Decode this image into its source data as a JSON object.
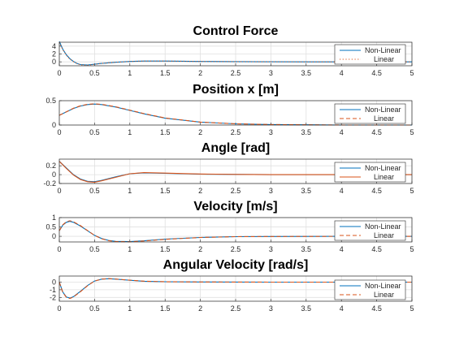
{
  "colors": {
    "nonlinear": "#0072BD",
    "linear": "#D95319",
    "grid": "#e0e0e0",
    "axis": "#262626"
  },
  "chart_data": [
    {
      "type": "line",
      "title": "Control Force",
      "xlim": [
        0,
        5
      ],
      "ylim": [
        -1,
        5
      ],
      "yticks": [
        "0",
        "2",
        "4"
      ],
      "yticks_values": [
        0,
        2,
        4
      ],
      "xticks": [
        "0",
        "0.5",
        "1",
        "1.5",
        "2",
        "2.5",
        "3",
        "3.5",
        "4",
        "4.5",
        "5"
      ],
      "grid": true,
      "legend": "right",
      "legend_style": [
        "solid",
        "dots"
      ],
      "series": [
        {
          "name": "Non-Linear",
          "x": [
            0,
            0.05,
            0.1,
            0.15,
            0.2,
            0.25,
            0.3,
            0.4,
            0.5,
            0.6,
            0.8,
            1.0,
            1.2,
            1.5,
            2.0,
            2.5,
            3.0,
            4.0,
            5.0
          ],
          "y": [
            5.2,
            3.2,
            1.8,
            0.8,
            0.1,
            -0.4,
            -0.7,
            -0.8,
            -0.6,
            -0.4,
            -0.1,
            0.1,
            0.2,
            0.2,
            0.1,
            0.05,
            0.02,
            0,
            0
          ]
        },
        {
          "name": "Linear",
          "x": [
            0,
            0.05,
            0.1,
            0.15,
            0.2,
            0.25,
            0.3,
            0.4,
            0.5,
            0.6,
            0.8,
            1.0,
            1.2,
            1.5,
            2.0,
            2.5,
            3.0,
            4.0,
            5.0
          ],
          "y": [
            5.0,
            3.1,
            1.7,
            0.7,
            0.05,
            -0.45,
            -0.75,
            -0.85,
            -0.65,
            -0.4,
            -0.1,
            0.1,
            0.2,
            0.2,
            0.1,
            0.05,
            0.02,
            0,
            0
          ]
        }
      ]
    },
    {
      "type": "line",
      "title": "Position x [m]",
      "xlim": [
        0,
        5
      ],
      "ylim": [
        0,
        0.5
      ],
      "yticks": [
        "0",
        "0.5"
      ],
      "yticks_values": [
        0,
        0.5
      ],
      "xticks": [
        "0",
        "0.5",
        "1",
        "1.5",
        "2",
        "2.5",
        "3",
        "3.5",
        "4",
        "4.5",
        "5"
      ],
      "grid": true,
      "legend": "right",
      "legend_style": [
        "solid",
        "dash"
      ],
      "series": [
        {
          "name": "Non-Linear",
          "x": [
            0,
            0.1,
            0.2,
            0.3,
            0.4,
            0.5,
            0.6,
            0.8,
            1.0,
            1.2,
            1.5,
            2.0,
            2.5,
            3.0,
            3.5,
            4.0,
            5.0
          ],
          "y": [
            0.2,
            0.27,
            0.34,
            0.39,
            0.42,
            0.43,
            0.42,
            0.37,
            0.3,
            0.23,
            0.14,
            0.06,
            0.025,
            0.01,
            0.005,
            0,
            0
          ]
        },
        {
          "name": "Linear",
          "x": [
            0,
            0.1,
            0.2,
            0.3,
            0.4,
            0.5,
            0.6,
            0.8,
            1.0,
            1.2,
            1.5,
            2.0,
            2.5,
            3.0,
            3.5,
            4.0,
            5.0
          ],
          "y": [
            0.2,
            0.27,
            0.345,
            0.395,
            0.425,
            0.435,
            0.425,
            0.375,
            0.305,
            0.235,
            0.145,
            0.06,
            0.025,
            0.01,
            0.005,
            0,
            0
          ]
        }
      ]
    },
    {
      "type": "line",
      "title": "Angle [rad]",
      "xlim": [
        0,
        5
      ],
      "ylim": [
        -0.2,
        0.35
      ],
      "yticks": [
        "0.2",
        "0",
        "-0.2"
      ],
      "yticks_values": [
        0.2,
        0,
        -0.2
      ],
      "xticks": [
        "0",
        "0.5",
        "1",
        "1.5",
        "2",
        "2.5",
        "3",
        "3.5",
        "4",
        "4.5",
        "5"
      ],
      "grid": true,
      "legend": "right",
      "legend_style": [
        "solid",
        "solid"
      ],
      "series": [
        {
          "name": "Non-Linear",
          "x": [
            0,
            0.1,
            0.2,
            0.3,
            0.4,
            0.5,
            0.6,
            0.8,
            1.0,
            1.2,
            1.5,
            2.0,
            2.5,
            3.0,
            4.0,
            5.0
          ],
          "y": [
            0.3,
            0.15,
            0.0,
            -0.1,
            -0.15,
            -0.16,
            -0.13,
            -0.05,
            0.02,
            0.04,
            0.03,
            0.01,
            0.005,
            0,
            0,
            0
          ]
        },
        {
          "name": "Linear",
          "x": [
            0,
            0.1,
            0.2,
            0.3,
            0.4,
            0.5,
            0.6,
            0.8,
            1.0,
            1.2,
            1.5,
            2.0,
            2.5,
            3.0,
            4.0,
            5.0
          ],
          "y": [
            0.3,
            0.14,
            -0.01,
            -0.11,
            -0.16,
            -0.17,
            -0.14,
            -0.06,
            0.02,
            0.045,
            0.035,
            0.015,
            0.005,
            0,
            0,
            0
          ]
        }
      ]
    },
    {
      "type": "line",
      "title": "Velocity [m/s]",
      "xlim": [
        0,
        5
      ],
      "ylim": [
        -0.3,
        1
      ],
      "yticks": [
        "1",
        "0.5",
        "0"
      ],
      "yticks_values": [
        1,
        0.5,
        0
      ],
      "xticks": [
        "0",
        "0.5",
        "1",
        "1.5",
        "2",
        "2.5",
        "3",
        "3.5",
        "4",
        "4.5",
        "5"
      ],
      "grid": true,
      "legend": "right",
      "legend_style": [
        "solid",
        "dash"
      ],
      "series": [
        {
          "name": "Non-Linear",
          "x": [
            0,
            0.05,
            0.1,
            0.15,
            0.2,
            0.3,
            0.4,
            0.5,
            0.6,
            0.7,
            0.8,
            1.0,
            1.2,
            1.5,
            2.0,
            2.5,
            3.0,
            4.0,
            5.0
          ],
          "y": [
            0.3,
            0.6,
            0.75,
            0.8,
            0.75,
            0.55,
            0.3,
            0.05,
            -0.12,
            -0.22,
            -0.27,
            -0.28,
            -0.24,
            -0.15,
            -0.06,
            -0.02,
            -0.01,
            0,
            0
          ]
        },
        {
          "name": "Linear",
          "x": [
            0,
            0.05,
            0.1,
            0.15,
            0.2,
            0.3,
            0.4,
            0.5,
            0.6,
            0.7,
            0.8,
            1.0,
            1.2,
            1.5,
            2.0,
            2.5,
            3.0,
            4.0,
            5.0
          ],
          "y": [
            0.3,
            0.62,
            0.78,
            0.83,
            0.78,
            0.57,
            0.31,
            0.05,
            -0.13,
            -0.23,
            -0.28,
            -0.29,
            -0.25,
            -0.16,
            -0.06,
            -0.02,
            -0.01,
            0,
            0
          ]
        }
      ]
    },
    {
      "type": "line",
      "title": "Angular Velocity [rad/s]",
      "xlim": [
        0,
        5
      ],
      "ylim": [
        -2.5,
        0.8
      ],
      "yticks": [
        "0",
        "-1",
        "-2"
      ],
      "yticks_values": [
        0,
        -1,
        -2
      ],
      "xticks": [
        "0",
        "0.5",
        "1",
        "1.5",
        "2",
        "2.5",
        "3",
        "3.5",
        "4",
        "4.5",
        "5"
      ],
      "grid": true,
      "legend": "right",
      "legend_style": [
        "solid",
        "dash"
      ],
      "series": [
        {
          "name": "Non-Linear",
          "x": [
            0,
            0.05,
            0.1,
            0.15,
            0.2,
            0.3,
            0.4,
            0.5,
            0.6,
            0.7,
            0.8,
            1.0,
            1.2,
            1.5,
            2.0,
            2.5,
            3.0,
            4.0,
            5.0
          ],
          "y": [
            0,
            -1.3,
            -1.95,
            -2.1,
            -1.9,
            -1.2,
            -0.45,
            0.15,
            0.4,
            0.45,
            0.4,
            0.25,
            0.12,
            0.05,
            0.02,
            0.01,
            0,
            0,
            0
          ]
        },
        {
          "name": "Linear",
          "x": [
            0,
            0.05,
            0.1,
            0.15,
            0.2,
            0.3,
            0.4,
            0.5,
            0.6,
            0.7,
            0.8,
            1.0,
            1.2,
            1.5,
            2.0,
            2.5,
            3.0,
            4.0,
            5.0
          ],
          "y": [
            0,
            -1.35,
            -2.0,
            -2.15,
            -1.95,
            -1.25,
            -0.47,
            0.14,
            0.4,
            0.46,
            0.41,
            0.26,
            0.13,
            0.05,
            0.02,
            0.01,
            0,
            0,
            0
          ]
        }
      ]
    }
  ]
}
